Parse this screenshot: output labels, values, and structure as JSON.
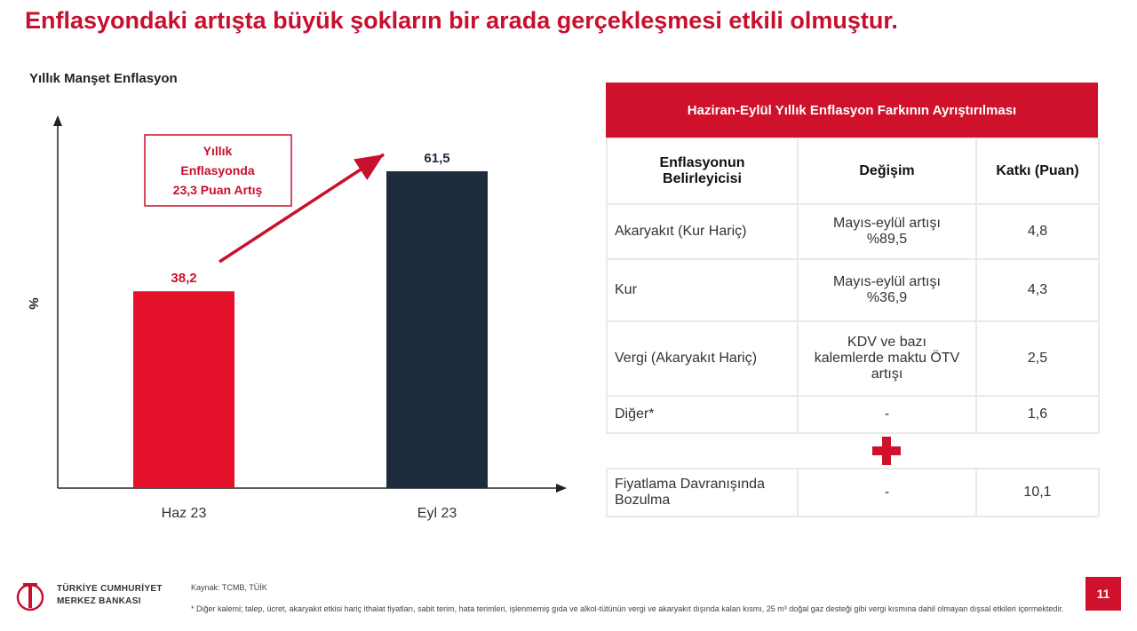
{
  "header": {
    "title": "Enflasyondaki artışta büyük şokların bir arada gerçekleşmesi etkili olmuştur."
  },
  "chart_data": {
    "type": "bar",
    "title": "Yıllık Manşet Enflasyon",
    "ylabel": "%",
    "xlabel": "",
    "categories": [
      "Haz 23",
      "Eyl 23"
    ],
    "values": [
      38.2,
      61.5
    ],
    "value_labels": [
      "38,2",
      "61,5"
    ],
    "bar_colors": [
      "#e4112b",
      "#1e2b3c"
    ],
    "label_colors": [
      "#c8102e",
      "#1e2b3c"
    ],
    "ylim": [
      0,
      72
    ],
    "grid": false,
    "annotation": {
      "lines": [
        "Yıllık",
        "Enflasyonda",
        "23,3 Puan Artış"
      ],
      "color": "#c8102e"
    }
  },
  "table": {
    "title": "Haziran-Eylül Yıllık Enflasyon Farkının Ayrıştırılması",
    "headers": [
      "Enflasyonun Belirleyicisi",
      "Değişim",
      "Katkı (Puan)"
    ],
    "rows": [
      [
        "Akaryakıt (Kur Hariç)",
        "Mayıs-eylül artışı %89,5",
        "4,8"
      ],
      [
        "Kur",
        "Mayıs-eylül artışı %36,9",
        "4,3"
      ],
      [
        "Vergi (Akaryakıt Hariç)",
        "KDV ve bazı kalemlerde maktu ÖTV artışı",
        "2,5"
      ],
      [
        "Diğer*",
        "-",
        "1,6"
      ]
    ],
    "extra_row": [
      "Fiyatlama Davranışında Bozulma",
      "-",
      "10,1"
    ]
  },
  "footer": {
    "logo_line1": "TÜRKİYE CUMHURİYET",
    "logo_line2": "MERKEZ BANKASI",
    "source": "Kaynak: TCMB, TÜİK",
    "footnote": "* Diğer kalemi; talep, ücret, akaryakıt etkisi hariç ithalat fiyatları, sabit terim, hata terimleri, işlenmemiş gıda ve alkol-tütünün vergi ve akaryakıt dışında kalan kısmı, 25 m³ doğal gaz desteği gibi vergi kısmına dahil olmayan dışsal etkileri içermektedir.",
    "page_number": "11"
  },
  "colors": {
    "brand_red": "#d0112b",
    "navy": "#1e2b3c"
  }
}
